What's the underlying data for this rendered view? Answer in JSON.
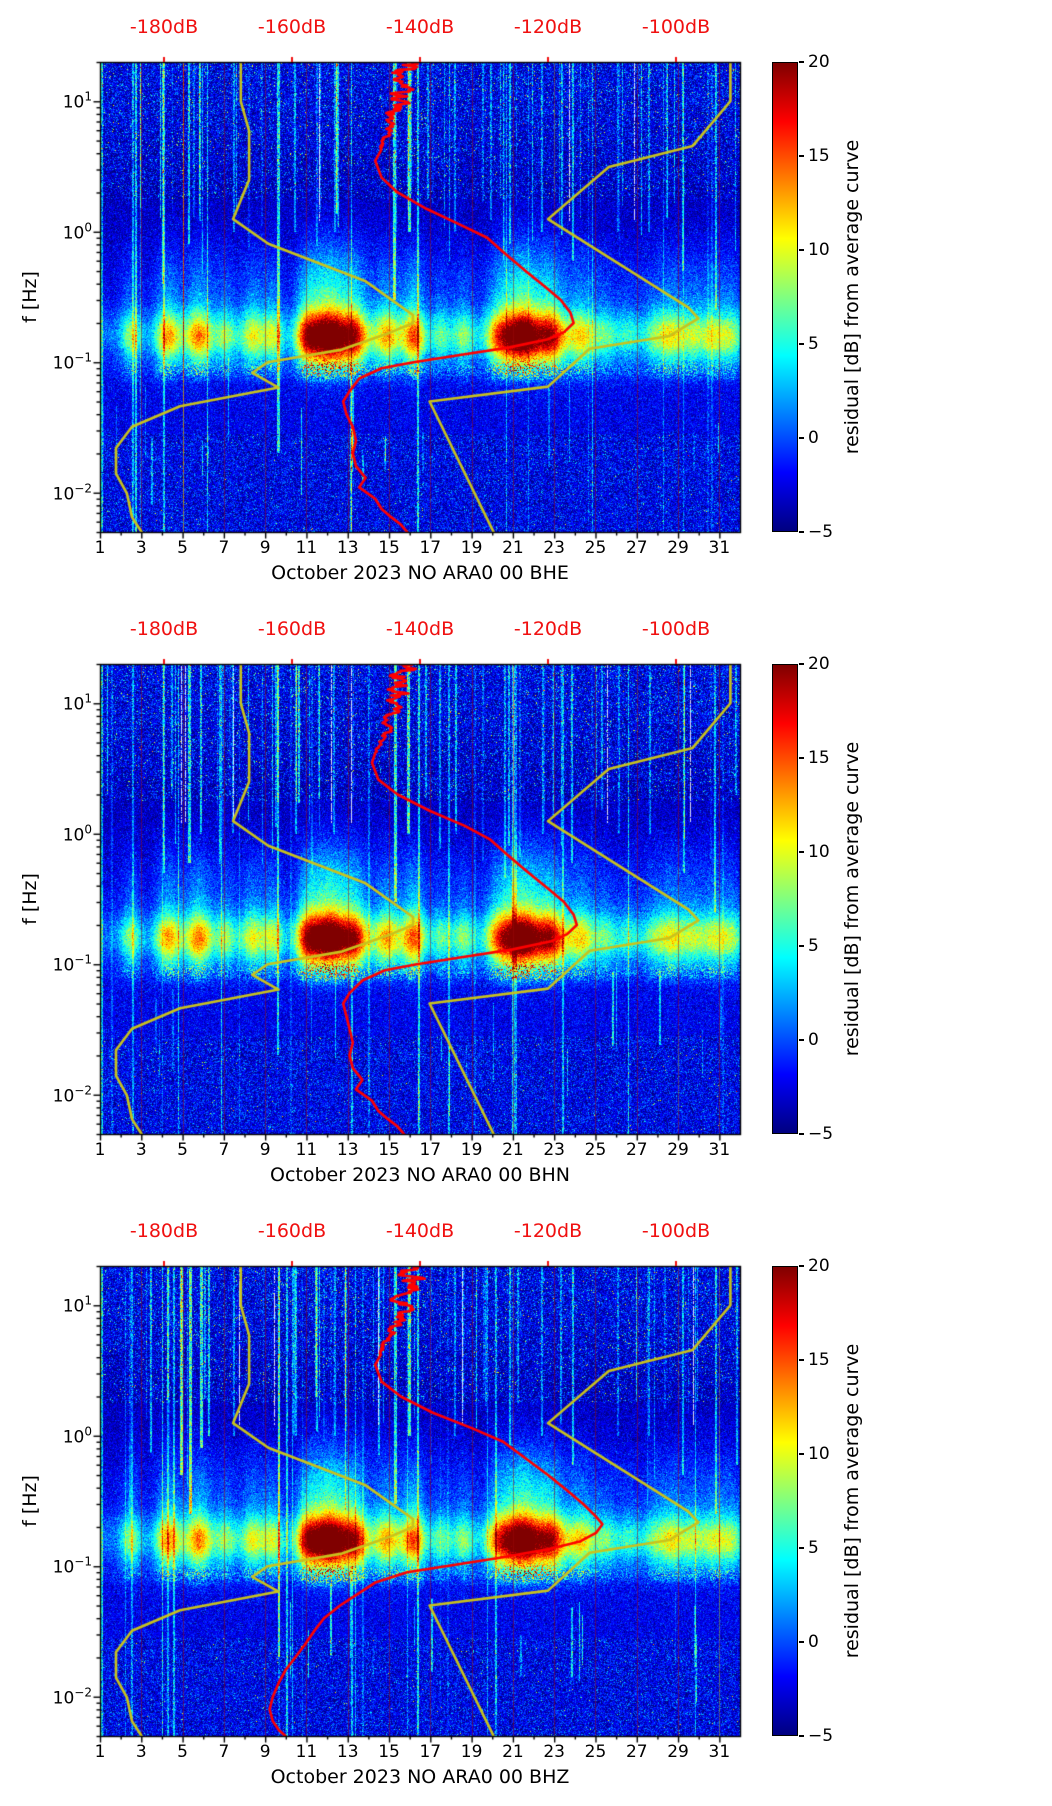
{
  "figure": {
    "background": "#ffffff",
    "colors": {
      "model_curve": "#c9c21d",
      "average_curve": "#ff0000",
      "top_axis": "#f01010",
      "grid_line": "#9b0a0a",
      "colormap_name": "jet"
    }
  },
  "noise_models": {
    "nlnm": [
      [
        20,
        -168
      ],
      [
        10,
        -168
      ],
      [
        5.9,
        -166.7
      ],
      [
        2.5,
        -166.7
      ],
      [
        1.25,
        -169.2
      ],
      [
        0.81,
        -163.7
      ],
      [
        0.42,
        -148.6
      ],
      [
        0.23,
        -141.1
      ],
      [
        0.2,
        -141.1
      ],
      [
        0.17,
        -144.5
      ],
      [
        0.125,
        -152.2
      ],
      [
        0.1,
        -163.8
      ],
      [
        0.083,
        -166.2
      ],
      [
        0.064,
        -162.1
      ],
      [
        0.046,
        -177.5
      ],
      [
        0.032,
        -185.0
      ],
      [
        0.022,
        -187.5
      ],
      [
        0.014,
        -187.5
      ],
      [
        0.0099,
        -185.8
      ],
      [
        0.0065,
        -185.0
      ],
      [
        0.005,
        -183.5
      ]
    ],
    "nhnm": [
      [
        20,
        -91.5
      ],
      [
        10,
        -91.5
      ],
      [
        4.55,
        -97.4
      ],
      [
        3.13,
        -110.5
      ],
      [
        1.25,
        -120.0
      ],
      [
        0.263,
        -98.1
      ],
      [
        0.217,
        -96.5
      ],
      [
        0.159,
        -101.0
      ],
      [
        0.127,
        -113.5
      ],
      [
        0.065,
        -120.0
      ],
      [
        0.05,
        -138.5
      ],
      [
        0.005,
        -128.5
      ]
    ]
  },
  "storm_events": [
    [
      2.5,
      6,
      0.35
    ],
    [
      4.3,
      10,
      0.45
    ],
    [
      5.8,
      11,
      0.5
    ],
    [
      7.1,
      6,
      0.35
    ],
    [
      8.4,
      8,
      0.45
    ],
    [
      9.4,
      7,
      0.35
    ],
    [
      11.0,
      9,
      0.4
    ],
    [
      12.1,
      21,
      0.75
    ],
    [
      13.4,
      11,
      0.45
    ],
    [
      14.9,
      10,
      0.5
    ],
    [
      16.2,
      12,
      0.4
    ],
    [
      17.5,
      5,
      0.35
    ],
    [
      18.6,
      6,
      0.4
    ],
    [
      20.3,
      9,
      0.5
    ],
    [
      21.5,
      20,
      0.7
    ],
    [
      22.9,
      13,
      0.5
    ],
    [
      24.3,
      9,
      0.5
    ],
    [
      25.5,
      5,
      0.4
    ],
    [
      26.6,
      4,
      0.4
    ],
    [
      27.8,
      5,
      0.4
    ],
    [
      28.7,
      8,
      0.45
    ],
    [
      29.7,
      6,
      0.4
    ],
    [
      30.7,
      7,
      0.45
    ],
    [
      31.6,
      6,
      0.4
    ]
  ],
  "chart_data": [
    {
      "type": "heatmap",
      "xlabel": "October 2023 NO ARA0 00 BHE",
      "x_axis": {
        "range_days": [
          1,
          32
        ],
        "tick_days": [
          1,
          3,
          5,
          7,
          9,
          11,
          13,
          15,
          17,
          19,
          21,
          23,
          25,
          27,
          29,
          31
        ]
      },
      "top_axis": {
        "range_db": [
          -190,
          -90
        ],
        "ticks_db": [
          -180,
          -160,
          -140,
          -120,
          -100
        ],
        "tick_labels": [
          "-180dB",
          "-160dB",
          "-140dB",
          "-120dB",
          "-100dB"
        ]
      },
      "y_axis": {
        "label": "f [Hz]",
        "scale": "log",
        "range_hz": [
          0.005,
          20
        ],
        "tick_exponents": [
          1,
          0,
          -1,
          -2
        ]
      },
      "colorbar": {
        "label": "residual [dB] from average curve",
        "range_db": [
          -5,
          20
        ],
        "ticks": [
          -5,
          0,
          5,
          10,
          15,
          20
        ]
      },
      "seed": 11,
      "event_days": [
        [
          1.08,
          8,
          0.005,
          20
        ],
        [
          2.62,
          7,
          0.005,
          20
        ],
        [
          4.05,
          8,
          0.4,
          20
        ],
        [
          5.32,
          9,
          0.8,
          20
        ],
        [
          5.85,
          8,
          1.2,
          20
        ],
        [
          7.5,
          6,
          1.0,
          20
        ],
        [
          9.62,
          10,
          0.02,
          20
        ],
        [
          10.45,
          7,
          1.0,
          20
        ],
        [
          12.4,
          6,
          1.0,
          20
        ],
        [
          13.15,
          7,
          0.005,
          0.1
        ],
        [
          15.25,
          11,
          0.3,
          20
        ],
        [
          15.95,
          12,
          1.0,
          20
        ],
        [
          16.4,
          9,
          0.005,
          20
        ],
        [
          18.2,
          6,
          1.0,
          20
        ],
        [
          20.85,
          7,
          0.8,
          20
        ],
        [
          22.4,
          6,
          1.0,
          20
        ],
        [
          23.9,
          8,
          0.6,
          20
        ],
        [
          26.1,
          5,
          1.0,
          20
        ],
        [
          27.6,
          6,
          1.0,
          20
        ],
        [
          29.25,
          7,
          0.5,
          20
        ],
        [
          30.85,
          8,
          0.25,
          20
        ]
      ],
      "average_curve_db_vs_hz": [
        [
          20,
          -142
        ],
        [
          12,
          -143
        ],
        [
          8,
          -144
        ],
        [
          6,
          -145
        ],
        [
          4.5,
          -146
        ],
        [
          3.5,
          -147
        ],
        [
          2.6,
          -146
        ],
        [
          2.0,
          -143.5
        ],
        [
          1.5,
          -139
        ],
        [
          1.15,
          -134
        ],
        [
          0.9,
          -129.5
        ],
        [
          0.7,
          -127
        ],
        [
          0.5,
          -123.5
        ],
        [
          0.38,
          -120.5
        ],
        [
          0.3,
          -118
        ],
        [
          0.24,
          -116.5
        ],
        [
          0.2,
          -116
        ],
        [
          0.17,
          -117.5
        ],
        [
          0.15,
          -120
        ],
        [
          0.13,
          -126
        ],
        [
          0.115,
          -133
        ],
        [
          0.1,
          -141
        ],
        [
          0.09,
          -146
        ],
        [
          0.075,
          -149.5
        ],
        [
          0.06,
          -151
        ],
        [
          0.05,
          -152
        ],
        [
          0.04,
          -151.5
        ],
        [
          0.032,
          -150.5
        ],
        [
          0.025,
          -150
        ],
        [
          0.02,
          -150.5
        ],
        [
          0.016,
          -150
        ],
        [
          0.013,
          -148.5
        ],
        [
          0.011,
          -149.5
        ],
        [
          0.009,
          -147
        ],
        [
          0.0075,
          -146
        ],
        [
          0.0065,
          -144.5
        ],
        [
          0.0057,
          -143
        ],
        [
          0.005,
          -142
        ]
      ]
    },
    {
      "type": "heatmap",
      "xlabel": "October 2023 NO ARA0 00 BHN",
      "x_axis": {
        "range_days": [
          1,
          32
        ],
        "tick_days": [
          1,
          3,
          5,
          7,
          9,
          11,
          13,
          15,
          17,
          19,
          21,
          23,
          25,
          27,
          29,
          31
        ]
      },
      "top_axis": {
        "range_db": [
          -190,
          -90
        ],
        "ticks_db": [
          -180,
          -160,
          -140,
          -120,
          -100
        ],
        "tick_labels": [
          "-180dB",
          "-160dB",
          "-140dB",
          "-120dB",
          "-100dB"
        ]
      },
      "y_axis": {
        "label": "f [Hz]",
        "scale": "log",
        "range_hz": [
          0.005,
          20
        ],
        "tick_exponents": [
          1,
          0,
          -1,
          -2
        ]
      },
      "colorbar": {
        "label": "residual [dB] from average curve",
        "range_db": [
          -5,
          20
        ],
        "ticks": [
          -5,
          0,
          5,
          10,
          15,
          20
        ]
      },
      "seed": 23,
      "event_days": [
        [
          1.1,
          8,
          0.005,
          20
        ],
        [
          2.6,
          6,
          0.005,
          20
        ],
        [
          4.1,
          8,
          0.5,
          20
        ],
        [
          5.3,
          10,
          0.6,
          20
        ],
        [
          5.9,
          9,
          1.0,
          20
        ],
        [
          7.45,
          6,
          1.0,
          20
        ],
        [
          9.6,
          9,
          0.02,
          20
        ],
        [
          10.5,
          7,
          1.0,
          20
        ],
        [
          12.35,
          6,
          1.0,
          20
        ],
        [
          13.2,
          7,
          0.005,
          0.1
        ],
        [
          15.3,
          11,
          0.3,
          20
        ],
        [
          15.9,
          12,
          1.0,
          20
        ],
        [
          16.45,
          9,
          0.005,
          20
        ],
        [
          18.25,
          6,
          1.0,
          20
        ],
        [
          20.8,
          7,
          0.8,
          20
        ],
        [
          22.45,
          6,
          1.0,
          20
        ],
        [
          23.85,
          8,
          0.6,
          20
        ],
        [
          26.15,
          5,
          1.0,
          20
        ],
        [
          27.65,
          6,
          1.0,
          20
        ],
        [
          29.3,
          7,
          0.5,
          20
        ],
        [
          30.8,
          8,
          0.25,
          20
        ]
      ],
      "average_curve_db_vs_hz": [
        [
          20,
          -142.5
        ],
        [
          12,
          -143.5
        ],
        [
          8,
          -144.5
        ],
        [
          6,
          -145.5
        ],
        [
          4.5,
          -146.5
        ],
        [
          3.5,
          -147.5
        ],
        [
          2.6,
          -146.5
        ],
        [
          2.0,
          -143.5
        ],
        [
          1.5,
          -138.5
        ],
        [
          1.15,
          -133
        ],
        [
          0.9,
          -129
        ],
        [
          0.7,
          -126.5
        ],
        [
          0.5,
          -123
        ],
        [
          0.38,
          -120
        ],
        [
          0.3,
          -117.5
        ],
        [
          0.24,
          -116
        ],
        [
          0.2,
          -115.5
        ],
        [
          0.17,
          -117
        ],
        [
          0.15,
          -119.5
        ],
        [
          0.13,
          -125.5
        ],
        [
          0.115,
          -132.5
        ],
        [
          0.1,
          -140.5
        ],
        [
          0.09,
          -145.5
        ],
        [
          0.075,
          -149
        ],
        [
          0.06,
          -151
        ],
        [
          0.05,
          -152
        ],
        [
          0.04,
          -151.5
        ],
        [
          0.032,
          -151
        ],
        [
          0.025,
          -150.5
        ],
        [
          0.02,
          -151
        ],
        [
          0.016,
          -150.5
        ],
        [
          0.013,
          -149
        ],
        [
          0.011,
          -150
        ],
        [
          0.009,
          -147.5
        ],
        [
          0.0075,
          -146.5
        ],
        [
          0.0065,
          -145
        ],
        [
          0.0057,
          -143.5
        ],
        [
          0.005,
          -142.5
        ]
      ]
    },
    {
      "type": "heatmap",
      "xlabel": "October 2023 NO ARA0 00 BHZ",
      "x_axis": {
        "range_days": [
          1,
          32
        ],
        "tick_days": [
          1,
          3,
          5,
          7,
          9,
          11,
          13,
          15,
          17,
          19,
          21,
          23,
          25,
          27,
          29,
          31
        ]
      },
      "top_axis": {
        "range_db": [
          -190,
          -90
        ],
        "ticks_db": [
          -180,
          -160,
          -140,
          -120,
          -100
        ],
        "tick_labels": [
          "-180dB",
          "-160dB",
          "-140dB",
          "-120dB",
          "-100dB"
        ]
      },
      "y_axis": {
        "label": "f [Hz]",
        "scale": "log",
        "range_hz": [
          0.005,
          20
        ],
        "tick_exponents": [
          1,
          0,
          -1,
          -2
        ]
      },
      "colorbar": {
        "label": "residual [dB] from average curve",
        "range_db": [
          -5,
          20
        ],
        "ticks": [
          -5,
          0,
          5,
          10,
          15,
          20
        ]
      },
      "seed": 37,
      "event_days": [
        [
          1.1,
          8,
          0.005,
          20
        ],
        [
          2.55,
          6,
          0.005,
          20
        ],
        [
          4.9,
          12,
          0.5,
          20
        ],
        [
          5.35,
          13,
          0.25,
          20
        ],
        [
          5.9,
          11,
          0.8,
          20
        ],
        [
          6.3,
          9,
          1.0,
          20
        ],
        [
          7.5,
          6,
          1.0,
          20
        ],
        [
          9.65,
          9,
          0.02,
          20
        ],
        [
          10.5,
          7,
          1.0,
          20
        ],
        [
          12.4,
          6,
          1.0,
          20
        ],
        [
          13.2,
          7,
          0.005,
          0.1
        ],
        [
          15.3,
          10,
          0.3,
          20
        ],
        [
          15.95,
          12,
          1.0,
          20
        ],
        [
          16.4,
          9,
          0.005,
          20
        ],
        [
          18.2,
          6,
          1.0,
          20
        ],
        [
          20.85,
          7,
          0.8,
          20
        ],
        [
          22.4,
          6,
          1.0,
          20
        ],
        [
          23.9,
          8,
          0.6,
          20
        ],
        [
          26.1,
          5,
          1.0,
          20
        ],
        [
          27.6,
          6,
          1.0,
          20
        ],
        [
          29.25,
          7,
          0.5,
          20
        ],
        [
          30.85,
          8,
          0.25,
          20
        ]
      ],
      "average_curve_db_vs_hz": [
        [
          20,
          -141
        ],
        [
          12,
          -142
        ],
        [
          8,
          -143
        ],
        [
          6,
          -144.5
        ],
        [
          4.5,
          -146
        ],
        [
          3.5,
          -147
        ],
        [
          2.6,
          -146
        ],
        [
          2.0,
          -143
        ],
        [
          1.5,
          -138
        ],
        [
          1.15,
          -132
        ],
        [
          0.9,
          -127
        ],
        [
          0.7,
          -124
        ],
        [
          0.5,
          -120
        ],
        [
          0.38,
          -117
        ],
        [
          0.3,
          -114.5
        ],
        [
          0.24,
          -112.5
        ],
        [
          0.21,
          -111.5
        ],
        [
          0.18,
          -112.5
        ],
        [
          0.155,
          -115
        ],
        [
          0.135,
          -120
        ],
        [
          0.115,
          -128
        ],
        [
          0.1,
          -136
        ],
        [
          0.09,
          -142
        ],
        [
          0.075,
          -147
        ],
        [
          0.06,
          -150
        ],
        [
          0.05,
          -152.5
        ],
        [
          0.04,
          -155
        ],
        [
          0.032,
          -156.5
        ],
        [
          0.025,
          -158
        ],
        [
          0.02,
          -159.5
        ],
        [
          0.016,
          -161
        ],
        [
          0.013,
          -162
        ],
        [
          0.01,
          -163
        ],
        [
          0.008,
          -163.5
        ],
        [
          0.0065,
          -163
        ],
        [
          0.0055,
          -162
        ],
        [
          0.005,
          -161
        ]
      ]
    }
  ]
}
